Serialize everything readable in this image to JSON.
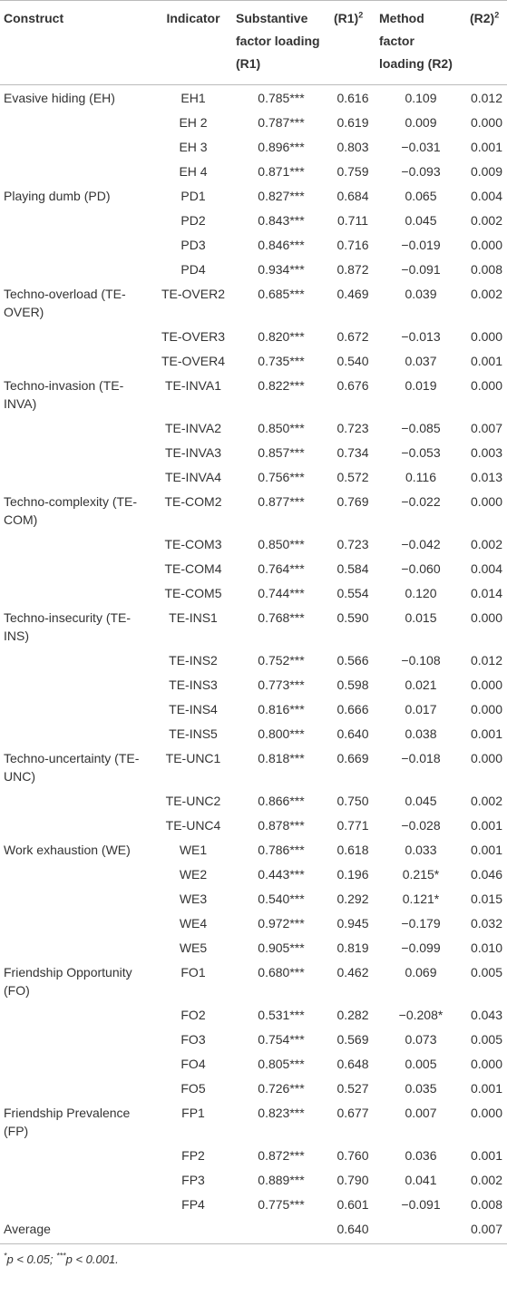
{
  "table": {
    "header": [
      {
        "text": "Construct"
      },
      {
        "text": "Indicator"
      },
      {
        "text": "Substantive factor loading (R1)"
      },
      {
        "text": "(R1)",
        "sup": "2"
      },
      {
        "text": "Method factor loading (R2)"
      },
      {
        "text": "(R2)",
        "sup": "2"
      }
    ],
    "groups": [
      {
        "construct": "Evasive hiding (EH)",
        "rows": [
          [
            "EH1",
            "0.785***",
            "0.616",
            "0.109",
            "0.012"
          ],
          [
            "EH 2",
            "0.787***",
            "0.619",
            "0.009",
            "0.000"
          ],
          [
            "EH 3",
            "0.896***",
            "0.803",
            "−0.031",
            "0.001"
          ],
          [
            "EH 4",
            "0.871***",
            "0.759",
            "−0.093",
            "0.009"
          ]
        ]
      },
      {
        "construct": "Playing dumb (PD)",
        "rows": [
          [
            "PD1",
            "0.827***",
            "0.684",
            "0.065",
            "0.004"
          ],
          [
            "PD2",
            "0.843***",
            "0.711",
            "0.045",
            "0.002"
          ],
          [
            "PD3",
            "0.846***",
            "0.716",
            "−0.019",
            "0.000"
          ],
          [
            "PD4",
            "0.934***",
            "0.872",
            "−0.091",
            "0.008"
          ]
        ]
      },
      {
        "construct": "Techno-overload (TE-OVER)",
        "rows": [
          [
            "TE-OVER2",
            "0.685***",
            "0.469",
            "0.039",
            "0.002"
          ],
          [
            "TE-OVER3",
            "0.820***",
            "0.672",
            "−0.013",
            "0.000"
          ],
          [
            "TE-OVER4",
            "0.735***",
            "0.540",
            "0.037",
            "0.001"
          ]
        ]
      },
      {
        "construct": "Techno-invasion (TE-INVA)",
        "rows": [
          [
            "TE-INVA1",
            "0.822***",
            "0.676",
            "0.019",
            "0.000"
          ],
          [
            "TE-INVA2",
            "0.850***",
            "0.723",
            "−0.085",
            "0.007"
          ],
          [
            "TE-INVA3",
            "0.857***",
            "0.734",
            "−0.053",
            "0.003"
          ],
          [
            "TE-INVA4",
            "0.756***",
            "0.572",
            "0.116",
            "0.013"
          ]
        ]
      },
      {
        "construct": "Techno-complexity (TE-COM)",
        "rows": [
          [
            "TE-COM2",
            "0.877***",
            "0.769",
            "−0.022",
            "0.000"
          ],
          [
            "TE-COM3",
            "0.850***",
            "0.723",
            "−0.042",
            "0.002"
          ],
          [
            "TE-COM4",
            "0.764***",
            "0.584",
            "−0.060",
            "0.004"
          ],
          [
            "TE-COM5",
            "0.744***",
            "0.554",
            "0.120",
            "0.014"
          ]
        ]
      },
      {
        "construct": "Techno-insecurity (TE-INS)",
        "rows": [
          [
            "TE-INS1",
            "0.768***",
            "0.590",
            "0.015",
            "0.000"
          ],
          [
            "TE-INS2",
            "0.752***",
            "0.566",
            "−0.108",
            "0.012"
          ],
          [
            "TE-INS3",
            "0.773***",
            "0.598",
            "0.021",
            "0.000"
          ],
          [
            "TE-INS4",
            "0.816***",
            "0.666",
            "0.017",
            "0.000"
          ],
          [
            "TE-INS5",
            "0.800***",
            "0.640",
            "0.038",
            "0.001"
          ]
        ]
      },
      {
        "construct": "Techno-uncertainty (TE-UNC)",
        "rows": [
          [
            "TE-UNC1",
            "0.818***",
            "0.669",
            "−0.018",
            "0.000"
          ],
          [
            "TE-UNC2",
            "0.866***",
            "0.750",
            "0.045",
            "0.002"
          ],
          [
            "TE-UNC4",
            "0.878***",
            "0.771",
            "−0.028",
            "0.001"
          ]
        ]
      },
      {
        "construct": "Work exhaustion (WE)",
        "rows": [
          [
            "WE1",
            "0.786***",
            "0.618",
            "0.033",
            "0.001"
          ],
          [
            "WE2",
            "0.443***",
            "0.196",
            "0.215*",
            "0.046"
          ],
          [
            "WE3",
            "0.540***",
            "0.292",
            "0.121*",
            "0.015"
          ],
          [
            "WE4",
            "0.972***",
            "0.945",
            "−0.179",
            "0.032"
          ],
          [
            "WE5",
            "0.905***",
            "0.819",
            "−0.099",
            "0.010"
          ]
        ]
      },
      {
        "construct": "Friendship Opportunity (FO)",
        "rows": [
          [
            "FO1",
            "0.680***",
            "0.462",
            "0.069",
            "0.005"
          ],
          [
            "FO2",
            "0.531***",
            "0.282",
            "−0.208*",
            "0.043"
          ],
          [
            "FO3",
            "0.754***",
            "0.569",
            "0.073",
            "0.005"
          ],
          [
            "FO4",
            "0.805***",
            "0.648",
            "0.005",
            "0.000"
          ],
          [
            "FO5",
            "0.726***",
            "0.527",
            "0.035",
            "0.001"
          ]
        ]
      },
      {
        "construct": "Friendship Prevalence (FP)",
        "rows": [
          [
            "FP1",
            "0.823***",
            "0.677",
            "0.007",
            "0.000"
          ],
          [
            "FP2",
            "0.872***",
            "0.760",
            "0.036",
            "0.001"
          ],
          [
            "FP3",
            "0.889***",
            "0.790",
            "0.041",
            "0.002"
          ],
          [
            "FP4",
            "0.775***",
            "0.601",
            "−0.091",
            "0.008"
          ]
        ]
      }
    ],
    "average": {
      "construct": "Average",
      "r1sq": "0.640",
      "r2sq": "0.007"
    },
    "footnote": [
      {
        "sup": "*"
      },
      {
        "text": "p < 0.05; "
      },
      {
        "sup": "***"
      },
      {
        "text": "p < 0.001."
      }
    ]
  }
}
